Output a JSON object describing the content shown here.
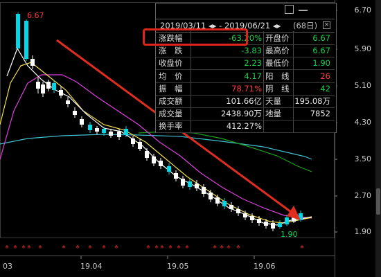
{
  "chart": {
    "y_axis_labels": [
      "6.70",
      "5.90",
      "5.10",
      "4.30",
      "3.50",
      "2.70",
      "1.90"
    ],
    "x_axis_labels": [
      "03",
      "19.04",
      "19.05",
      "19.06"
    ],
    "high_tag": "6.67",
    "low_tag": "1.90",
    "colors": {
      "up": "#00d8e8",
      "down": "#ffffff",
      "ma5": "#ffffff",
      "ma10": "#f5e04a",
      "ma20": "#e040e0",
      "ma60": "#20a020",
      "ma120": "#40c0d0",
      "arrow": "#e02d1f",
      "marker": "#ff3030"
    }
  },
  "panel": {
    "date_range": "2019/03/11 ◂▸ - 2019/06/21 ◂▸",
    "count": "(68日)",
    "rows": [
      {
        "l1": "涨跌幅",
        "v1": "-63.20%",
        "c1": "#19d24a",
        "l2": "开盘价",
        "v2": "6.67",
        "c2": "#19d24a"
      },
      {
        "l1": "涨　跌",
        "v1": "-3.83",
        "c1": "#19d24a",
        "l2": "最高价",
        "v2": "6.67",
        "c2": "#19d24a"
      },
      {
        "l1": "收盘价",
        "v1": "2.23",
        "c1": "#19d24a",
        "l2": "最低价",
        "v2": "1.90",
        "c2": "#19d24a"
      },
      {
        "l1": "均　价",
        "v1": "4.17",
        "c1": "#19d24a",
        "l2": "阳　线",
        "v2": "26",
        "c2": "#ff3b3b"
      },
      {
        "l1": "振　幅",
        "v1": "78.71%",
        "c1": "#ff3b3b",
        "l2": "阴　线",
        "v2": "42",
        "c2": "#19d24a"
      },
      {
        "l1": "成交额",
        "v1": "101.66亿",
        "c1": "#e8e8e8",
        "l2": "天量",
        "v2": "195.08万",
        "c2": "#e8e8e8"
      },
      {
        "l1": "成交量",
        "v1": "2438.90万",
        "c1": "#e8e8e8",
        "l2": "地量",
        "v2": "7852",
        "c2": "#e8e8e8"
      },
      {
        "l1": "换手率",
        "v1": "412.27%",
        "c1": "#e8e8e8",
        "l2": "",
        "v2": "",
        "c2": "#e8e8e8"
      }
    ]
  }
}
